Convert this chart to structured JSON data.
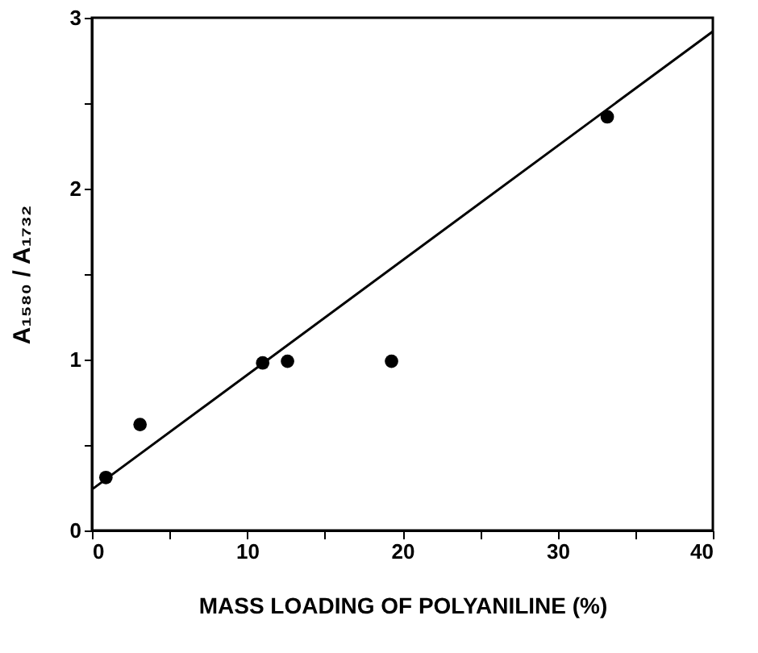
{
  "chart_data": {
    "type": "scatter",
    "xlabel": "MASS LOADING OF POLYANILINE (%)",
    "ylabel": "A₁₅₈₀ / A₁₇₃₂",
    "x": [
      0.9,
      3.1,
      11.0,
      12.6,
      19.3,
      33.2
    ],
    "series": [
      {
        "color": "#000000",
        "marker": "circle",
        "values": [
          0.31,
          0.62,
          0.98,
          0.99,
          0.99,
          2.42
        ]
      },
      {
        "type": "line",
        "color": "#000000",
        "marker": "none",
        "line_style": "solid",
        "x": [
          0,
          40
        ],
        "values": [
          0.24,
          2.92
        ]
      }
    ],
    "xlim": [
      0,
      40
    ],
    "ylim": [
      0,
      3
    ],
    "xticks": [
      0,
      {
        "value": 5,
        "label": null
      },
      10,
      {
        "value": 15,
        "label": null
      },
      20,
      {
        "value": 25,
        "label": null
      },
      30,
      {
        "value": 35,
        "label": null
      },
      40
    ],
    "yticks": [
      0,
      {
        "value": 0.5,
        "label": null
      },
      1,
      {
        "value": 1.5,
        "label": null
      },
      2,
      {
        "value": 2.5,
        "label": null
      },
      3
    ],
    "grid": false
  }
}
